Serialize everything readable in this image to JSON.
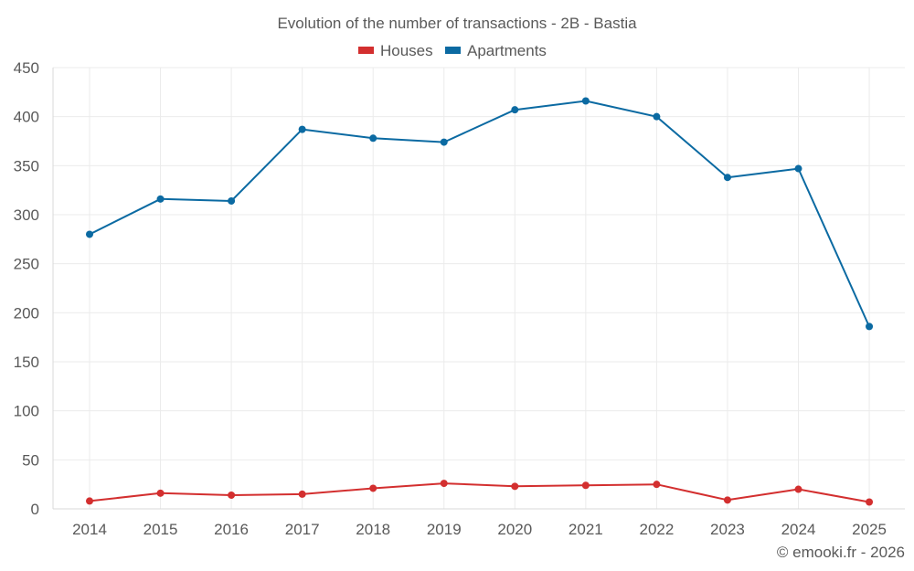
{
  "chart_data": {
    "type": "line",
    "title": "Evolution of the number of transactions - 2B - Bastia",
    "xlabel": "",
    "ylabel": "",
    "categories": [
      "2014",
      "2015",
      "2016",
      "2017",
      "2018",
      "2019",
      "2020",
      "2021",
      "2022",
      "2023",
      "2024",
      "2025"
    ],
    "ylim": [
      0,
      450
    ],
    "yticks": [
      0,
      50,
      100,
      150,
      200,
      250,
      300,
      350,
      400,
      450
    ],
    "grid": true,
    "legend_position": "top-center",
    "series": [
      {
        "name": "Houses",
        "color": "#d32f2f",
        "values": [
          8,
          16,
          14,
          15,
          21,
          26,
          23,
          24,
          25,
          9,
          20,
          7
        ]
      },
      {
        "name": "Apartments",
        "color": "#0b6aa2",
        "values": [
          280,
          316,
          314,
          387,
          378,
          374,
          407,
          416,
          400,
          338,
          347,
          186
        ]
      }
    ],
    "credit": "© emooki.fr - 2026"
  }
}
